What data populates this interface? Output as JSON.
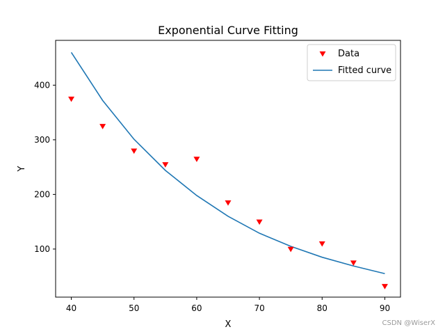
{
  "chart_data": {
    "type": "scatter",
    "title": "Exponential Curve Fitting",
    "xlabel": "X",
    "ylabel": "Y",
    "xlim": [
      37.5,
      92.5
    ],
    "ylim": [
      12,
      482
    ],
    "xticks": [
      40,
      50,
      60,
      70,
      80,
      90
    ],
    "yticks": [
      100,
      200,
      300,
      400
    ],
    "grid": false,
    "legend_position": "top-right",
    "series": [
      {
        "name": "Data",
        "kind": "scatter",
        "marker": "triangle-down",
        "color": "#ff0000",
        "x": [
          40,
          45,
          50,
          55,
          60,
          65,
          70,
          75,
          80,
          85,
          90
        ],
        "y": [
          375,
          325,
          280,
          255,
          265,
          185,
          150,
          100,
          110,
          75,
          32
        ]
      },
      {
        "name": "Fitted curve",
        "kind": "line",
        "color": "#1f77b4",
        "x": [
          40,
          45,
          50,
          55,
          60,
          65,
          70,
          75,
          80,
          85,
          90
        ],
        "y": [
          460,
          372,
          301,
          244,
          198,
          160,
          129,
          105,
          85,
          69,
          55
        ]
      }
    ]
  },
  "watermark": "CSDN @WiserX"
}
